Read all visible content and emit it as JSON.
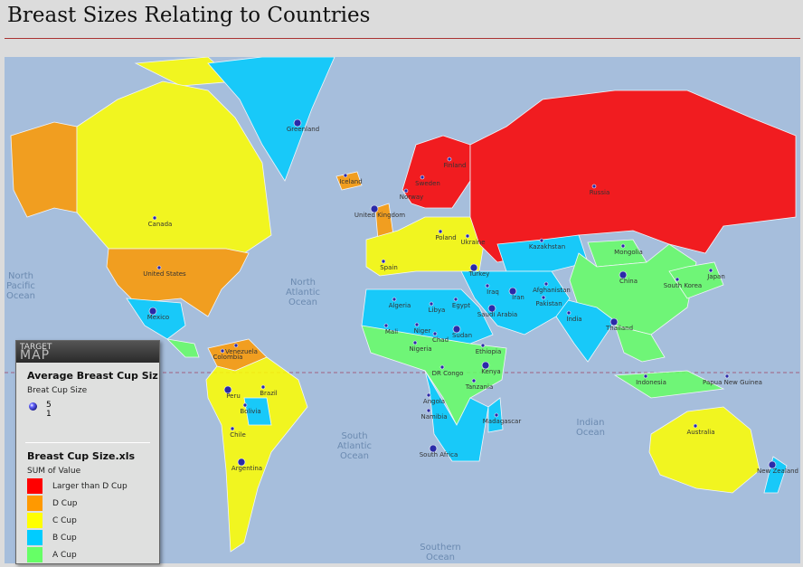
{
  "title": "Breast Sizes Relating to Countries",
  "colors": {
    "ocean": "#a6bedc",
    "larger_than_d": "#ff0000",
    "d": "#ff9900",
    "c": "#ffff00",
    "b": "#00ccff",
    "a": "#66ff66"
  },
  "legend": {
    "brand_top": "TARGET",
    "brand_bottom": "MAP",
    "bubble_title": "Average Breast Cup Siz",
    "bubble_subtitle": "Breat Cup Size",
    "bubble_max": "5",
    "bubble_min": "1",
    "choropleth_title": "Breast Cup Size.xls",
    "choropleth_subtitle": "SUM of Value",
    "items": [
      {
        "label": "Larger than D Cup",
        "color": "#ff0000"
      },
      {
        "label": "D Cup",
        "color": "#ff9900"
      },
      {
        "label": "C Cup",
        "color": "#ffff00"
      },
      {
        "label": "B Cup",
        "color": "#00ccff"
      },
      {
        "label": "A Cup",
        "color": "#66ff66"
      }
    ]
  },
  "oceans": [
    "North Pacific Ocean",
    "North Atlantic Ocean",
    "South Atlantic Ocean",
    "Indian Ocean",
    "Southern Ocean"
  ],
  "country_labels": [
    "Greenland",
    "Iceland",
    "Canada",
    "United States",
    "Mexico",
    "Norway",
    "Sweden",
    "Finland",
    "United Kingdom",
    "Poland",
    "Ukraine",
    "Spain",
    "Turkey",
    "Russia",
    "Kazakhstan",
    "Mongolia",
    "China",
    "South Korea",
    "Japan",
    "Iraq",
    "Iran",
    "Afghanistan",
    "Pakistan",
    "India",
    "Thailand",
    "Indonesia",
    "Papua New Guinea",
    "Australia",
    "New Zealand",
    "Algeria",
    "Libya",
    "Egypt",
    "Saudi Arabia",
    "Mali",
    "Niger",
    "Chad",
    "Sudan",
    "Nigeria",
    "Ethiopia",
    "DR Congo",
    "Kenya",
    "Tanzania",
    "Angola",
    "Namibia",
    "South Africa",
    "Madagascar",
    "Colombia",
    "Venezuela",
    "Peru",
    "Brazil",
    "Bolivia",
    "Chile",
    "Argentina"
  ]
}
